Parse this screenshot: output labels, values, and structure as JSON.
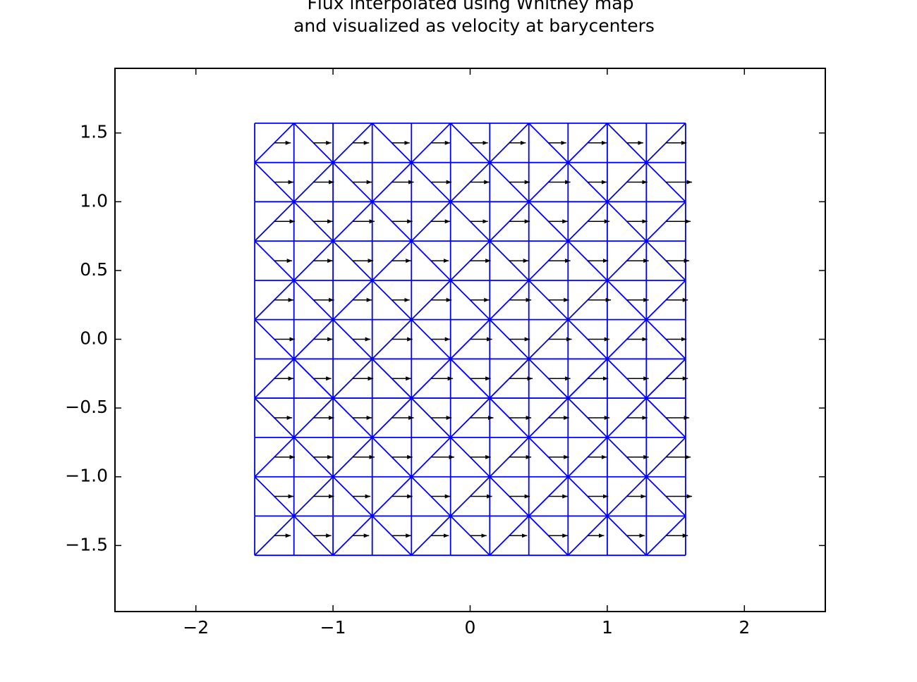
{
  "chart_data": {
    "type": "quiver",
    "title": [
      "Flux interpolated using Whitney map",
      "and visualized as velocity at barycenters"
    ],
    "xlim": [
      -2.59,
      2.59
    ],
    "ylim": [
      -1.98,
      1.97
    ],
    "xticks": [
      {
        "value": -2,
        "label": "−2"
      },
      {
        "value": -1,
        "label": "−1"
      },
      0,
      1,
      2
    ],
    "yticks": [
      {
        "value": -1.5,
        "label": "−1.5"
      },
      {
        "value": -1.0,
        "label": "−1.0"
      },
      {
        "value": -0.5,
        "label": "−0.5"
      },
      {
        "value": 0,
        "label": "0.0"
      },
      {
        "value": 0.5,
        "label": "0.5"
      },
      {
        "value": 1.0,
        "label": "1.0"
      },
      {
        "value": 1.5,
        "label": "1.5"
      }
    ],
    "mesh": {
      "color": "#0000ff",
      "x": [
        -1.571,
        -1.285,
        -1.0,
        -0.714,
        -0.428,
        -0.143,
        0.143,
        0.428,
        0.714,
        1.0,
        1.285,
        1.571
      ],
      "y": [
        -1.571,
        -1.285,
        -1.0,
        -0.714,
        -0.428,
        -0.143,
        0.143,
        0.428,
        0.714,
        1.0,
        1.285,
        1.571
      ]
    },
    "arrows": {
      "color": "#000000",
      "u": [
        [
          0.12,
          0.13,
          0.12,
          0.14,
          0.13,
          0.12,
          0.13,
          0.14,
          0.12,
          0.13,
          0.16
        ],
        [
          0.14,
          0.15,
          0.13,
          0.15,
          0.14,
          0.16,
          0.15,
          0.14,
          0.15,
          0.14,
          0.19
        ],
        [
          0.15,
          0.14,
          0.16,
          0.15,
          0.17,
          0.15,
          0.16,
          0.15,
          0.14,
          0.16,
          0.18
        ],
        [
          0.13,
          0.15,
          0.14,
          0.16,
          0.15,
          0.17,
          0.16,
          0.15,
          0.16,
          0.15,
          0.17
        ],
        [
          0.14,
          0.13,
          0.15,
          0.14,
          0.16,
          0.15,
          0.17,
          0.16,
          0.15,
          0.16,
          0.16
        ],
        [
          0.15,
          0.14,
          0.13,
          0.15,
          0.14,
          0.16,
          0.15,
          0.17,
          0.16,
          0.15,
          0.15
        ],
        [
          0.14,
          0.15,
          0.14,
          0.13,
          0.15,
          0.14,
          0.16,
          0.15,
          0.17,
          0.16,
          0.16
        ],
        [
          0.13,
          0.14,
          0.15,
          0.14,
          0.13,
          0.15,
          0.14,
          0.16,
          0.15,
          0.16,
          0.17
        ],
        [
          0.15,
          0.14,
          0.16,
          0.15,
          0.14,
          0.13,
          0.15,
          0.14,
          0.16,
          0.15,
          0.18
        ],
        [
          0.14,
          0.15,
          0.14,
          0.16,
          0.15,
          0.14,
          0.15,
          0.16,
          0.14,
          0.15,
          0.19
        ],
        [
          0.12,
          0.13,
          0.12,
          0.13,
          0.14,
          0.13,
          0.12,
          0.13,
          0.14,
          0.12,
          0.15
        ]
      ]
    }
  }
}
